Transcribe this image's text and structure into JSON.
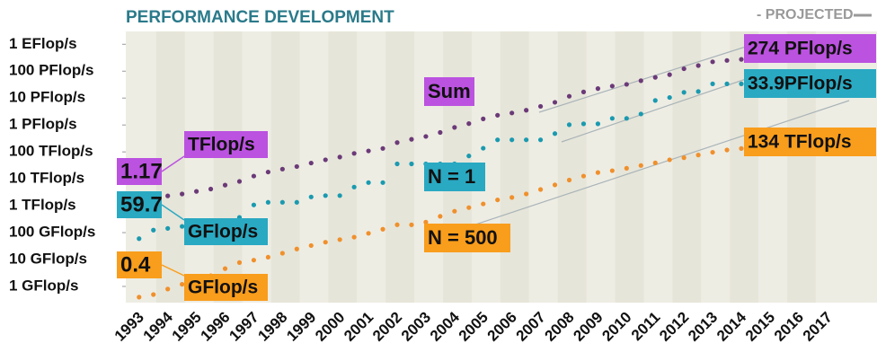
{
  "chart_data": {
    "type": "scatter",
    "title": "PERFORMANCE DEVELOPMENT",
    "projected_label": "- PROJECTED",
    "log_y": true,
    "ylim": [
      0.25,
      3000000000
    ],
    "yticks": [
      {
        "value": 1,
        "label": "1 GFlop/s"
      },
      {
        "value": 10,
        "label": "10 GFlop/s"
      },
      {
        "value": 100,
        "label": "100 GFlop/s"
      },
      {
        "value": 1000,
        "label": "1 TFlop/s"
      },
      {
        "value": 10000,
        "label": "10 TFlop/s"
      },
      {
        "value": 100000,
        "label": "100 TFlop/s"
      },
      {
        "value": 1000000,
        "label": "1 PFlop/s"
      },
      {
        "value": 10000000,
        "label": "10 PFlop/s"
      },
      {
        "value": 100000000,
        "label": "100 PFlop/s"
      },
      {
        "value": 1000000000,
        "label": "1 EFlop/s"
      }
    ],
    "xlim": [
      1993,
      2019.1
    ],
    "xticks": [
      1993,
      1994,
      1995,
      1996,
      1997,
      1998,
      1999,
      2000,
      2001,
      2002,
      2003,
      2004,
      2005,
      2006,
      2007,
      2008,
      2009,
      2010,
      2011,
      2012,
      2013,
      2014,
      2015,
      2016,
      2017
    ],
    "x": [
      1993.4,
      1993.9,
      1994.4,
      1994.9,
      1995.4,
      1995.9,
      1996.4,
      1996.9,
      1997.4,
      1997.9,
      1998.4,
      1998.9,
      1999.4,
      1999.9,
      2000.4,
      2000.9,
      2001.4,
      2001.9,
      2002.4,
      2002.9,
      2003.4,
      2003.9,
      2004.4,
      2004.9,
      2005.4,
      2005.9,
      2006.4,
      2006.9,
      2007.4,
      2007.9,
      2008.4,
      2008.9,
      2009.4,
      2009.9,
      2010.4,
      2010.9,
      2011.4,
      2011.9,
      2012.4,
      2012.9,
      2013.4,
      2013.9,
      2014.4
    ],
    "series": [
      {
        "name": "Sum",
        "color": "#6b3a78",
        "label_color": "#bb52e0",
        "first_label": [
          "1.17",
          "TFlop/s"
        ],
        "last_label": "274 PFlop/s",
        "values": [
          1167,
          1493,
          2320,
          2730,
          3400,
          4160,
          5830,
          7990,
          12620,
          17840,
          22900,
          28620,
          38480,
          50960,
          64320,
          88120,
          108700,
          134400,
          222200,
          293500,
          374600,
          528300,
          813200,
          1127000,
          1690000,
          2300000,
          2790000,
          3530000,
          4920000,
          6970000,
          11700000,
          16950000,
          22600000,
          27950000,
          32400000,
          44200000,
          58900000,
          74200000,
          123000000,
          162000000,
          223000000,
          250000000,
          274000000
        ]
      },
      {
        "name": "N = 1",
        "color": "#1a9ab0",
        "label_color": "#2aa9c2",
        "first_label": [
          "59.7",
          "GFlop/s"
        ],
        "last_label": "33.9PFlop/s",
        "values": [
          59.7,
          124,
          143.4,
          170,
          170,
          170,
          220.4,
          368.2,
          1068,
          1338,
          1338,
          1338,
          2121,
          2379,
          2379,
          4938,
          7226,
          7226,
          35860,
          35860,
          35860,
          35860,
          35860,
          70720,
          136800,
          280600,
          280600,
          280600,
          280600,
          478200,
          1026000,
          1105000,
          1105000,
          1759000,
          1759000,
          2566000,
          8162000,
          10510000,
          16320000,
          17590000,
          33860000,
          33860000,
          33860000
        ]
      },
      {
        "name": "N = 500",
        "color": "#f0902c",
        "label_color": "#f99d1c",
        "first_label": [
          "0.4",
          "GFlop/s"
        ],
        "last_label": "134 TFlop/s",
        "values": [
          0.4,
          0.5,
          0.8,
          1.2,
          1.96,
          2.5,
          4.6,
          7.7,
          9.5,
          12.2,
          17.1,
          24.7,
          33.1,
          44.1,
          55.1,
          67.8,
          94.3,
          134,
          196,
          195,
          245,
          403,
          624,
          851,
          1166,
          1646,
          2026,
          2737,
          4005,
          5929,
          9000,
          12640,
          17100,
          20050,
          24670,
          31120,
          39090,
          50940,
          60820,
          76500,
          96620,
          117800,
          133700
        ]
      }
    ]
  }
}
